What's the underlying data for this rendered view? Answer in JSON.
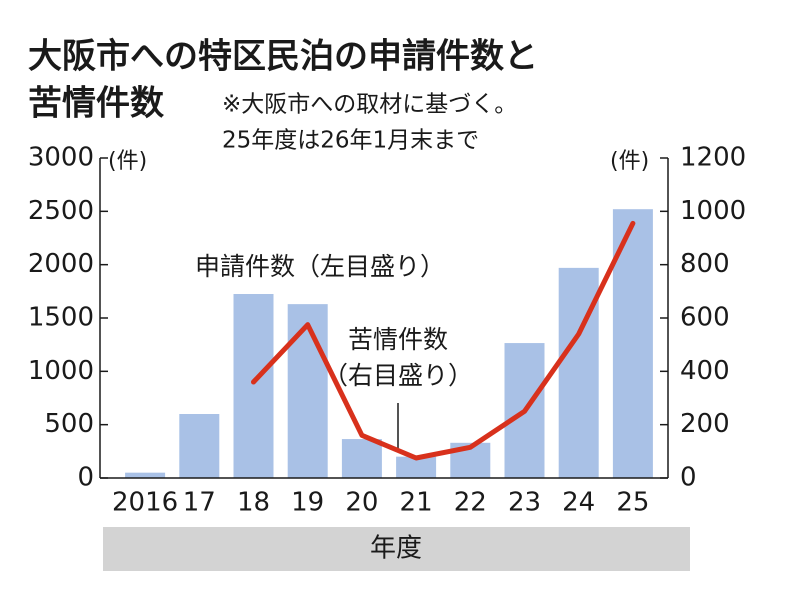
{
  "chart_data": {
    "type": "bar-line",
    "title": [
      "大阪市への特区民泊の申請件数と",
      "苦情件数"
    ],
    "annotation": [
      "※大阪市への取材に基づく。",
      "25年度は26年1月末まで"
    ],
    "x_label": "年度",
    "y_unit": "(件)",
    "y2_unit": "(件)",
    "categories": [
      "2016",
      "17",
      "18",
      "19",
      "20",
      "21",
      "22",
      "23",
      "24",
      "25"
    ],
    "series": [
      {
        "name": "申請件数（左目盛り）",
        "type": "bar",
        "color": "#a9c1e6",
        "values": [
          50,
          600,
          1725,
          1630,
          365,
          200,
          330,
          1265,
          1970,
          2520
        ]
      },
      {
        "name": "苦情件数（右目盛り）",
        "type": "line",
        "axis": "y2",
        "color": "#d8311c",
        "values": [
          null,
          null,
          360,
          575,
          160,
          75,
          115,
          250,
          540,
          955
        ]
      }
    ],
    "ylim": [
      0,
      3000
    ],
    "yticks": [
      0,
      500,
      1000,
      1500,
      2000,
      2500,
      3000
    ],
    "y2lim": [
      0,
      1200
    ],
    "y2ticks": [
      0,
      200,
      400,
      600,
      800,
      1000,
      1200
    ]
  }
}
